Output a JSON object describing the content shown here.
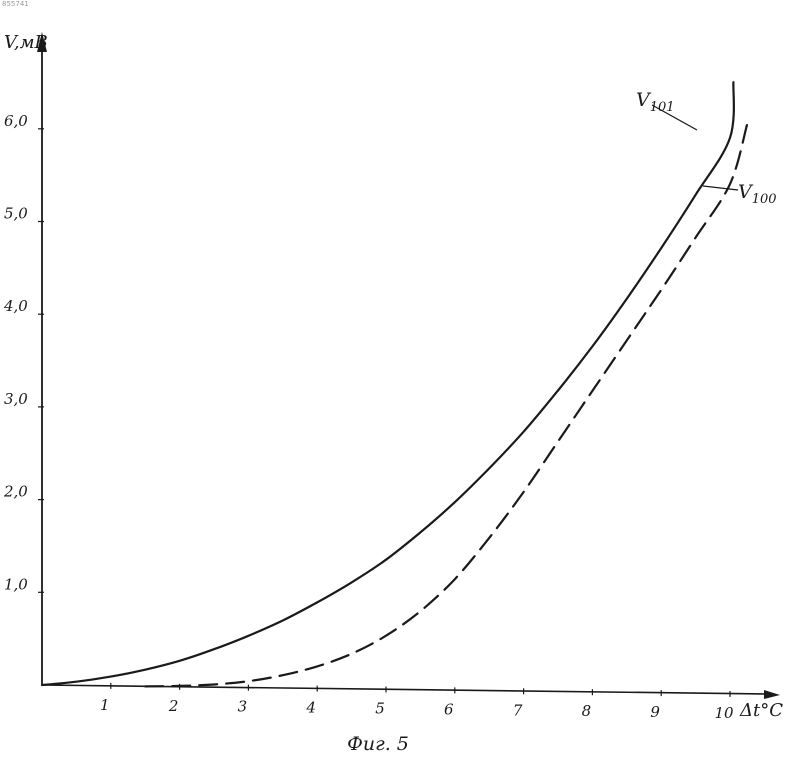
{
  "doc_id": "855741",
  "chart_data": {
    "type": "line",
    "caption": "Фиг. 5",
    "xlabel": "Δt°C",
    "ylabel": "V,мВ",
    "xlim": [
      0,
      10.5
    ],
    "ylim": [
      0,
      6.5
    ],
    "x_ticks": [
      "1",
      "2",
      "3",
      "4",
      "5",
      "6",
      "7",
      "8",
      "9",
      "10"
    ],
    "y_ticks": [
      "1,0",
      "2,0",
      "3,0",
      "4,0",
      "5,0",
      "6,0"
    ],
    "series": [
      {
        "name": "V101",
        "name_base": "V",
        "name_sub": "101",
        "style": "solid",
        "color": "#1a1a1a",
        "x": [
          0,
          0.5,
          1,
          1.5,
          2,
          2.5,
          3,
          3.5,
          4,
          4.5,
          5,
          5.5,
          6,
          6.5,
          7,
          7.5,
          8,
          8.5,
          9,
          9.5,
          10,
          10.05
        ],
        "y": [
          0,
          0.04,
          0.1,
          0.18,
          0.28,
          0.41,
          0.56,
          0.73,
          0.93,
          1.15,
          1.4,
          1.7,
          2.03,
          2.4,
          2.8,
          3.25,
          3.73,
          4.25,
          4.8,
          5.38,
          6.0,
          6.6
        ]
      },
      {
        "name": "V100",
        "name_base": "V",
        "name_sub": "100",
        "style": "dashed",
        "color": "#1a1a1a",
        "x": [
          1.5,
          2,
          2.5,
          3,
          3.5,
          4,
          4.5,
          5,
          5.5,
          6,
          6.5,
          7,
          7.5,
          8,
          8.5,
          9,
          9.5,
          10,
          10.25
        ],
        "y": [
          0,
          0.01,
          0.03,
          0.07,
          0.14,
          0.24,
          0.38,
          0.58,
          0.85,
          1.2,
          1.65,
          2.15,
          2.7,
          3.25,
          3.8,
          4.35,
          4.92,
          5.5,
          6.15
        ]
      }
    ],
    "grid": false,
    "legend": "inline labels near line ends"
  }
}
